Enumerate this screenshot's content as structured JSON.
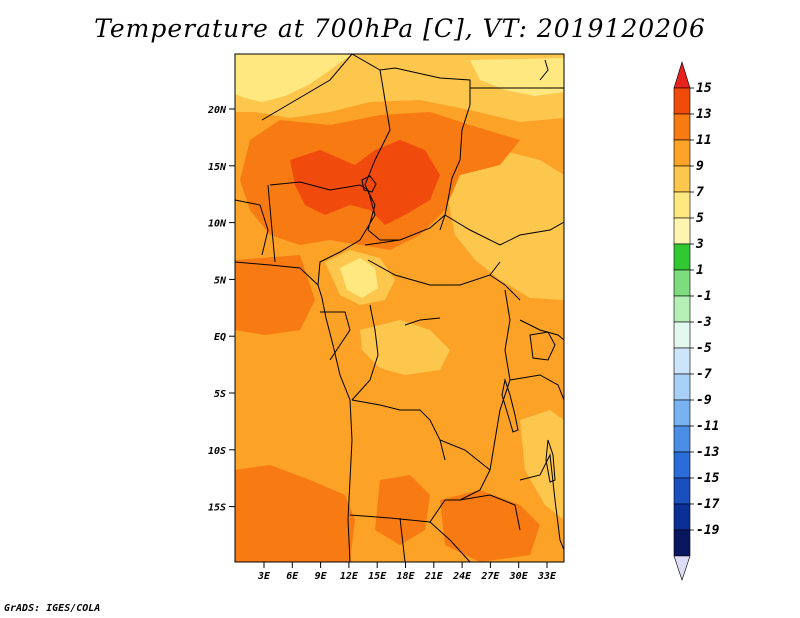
{
  "title": "Temperature at 700hPa [C], VT: 2019120206",
  "credit": "GrADS: IGES/COLA",
  "map": {
    "lon_range": [
      0,
      35
    ],
    "lat_range": [
      -20,
      25
    ],
    "lat_ticks": [
      "20N",
      "15N",
      "10N",
      "5N",
      "EQ",
      "5S",
      "10S",
      "15S"
    ],
    "lon_ticks": [
      "3E",
      "6E",
      "9E",
      "12E",
      "15E",
      "18E",
      "21E",
      "24E",
      "27E",
      "30E",
      "33E"
    ],
    "ocean_color": "#fbb03b",
    "field_colors": {
      "5": "#ffe880",
      "7": "#fdc64d",
      "9": "#fba227",
      "11": "#f87a12",
      "13": "#f04b0c"
    }
  },
  "colorbar": {
    "labels": [
      "15",
      "13",
      "11",
      "9",
      "7",
      "5",
      "3",
      "1",
      "-1",
      "-3",
      "-5",
      "-7",
      "-9",
      "-11",
      "-13",
      "-15",
      "-17",
      "-19"
    ],
    "colors": [
      "#e8221c",
      "#f04b0c",
      "#f87a12",
      "#fba227",
      "#fdc64d",
      "#ffe880",
      "#fff5b0",
      "#32c832",
      "#7ddc7d",
      "#b5efb5",
      "#e2f7ee",
      "#cde5fb",
      "#a8d0f7",
      "#78b2f0",
      "#4a8ee6",
      "#2a6cd8",
      "#1a4fbe",
      "#0c2f96",
      "#08175e",
      "#ddddf5"
    ]
  }
}
